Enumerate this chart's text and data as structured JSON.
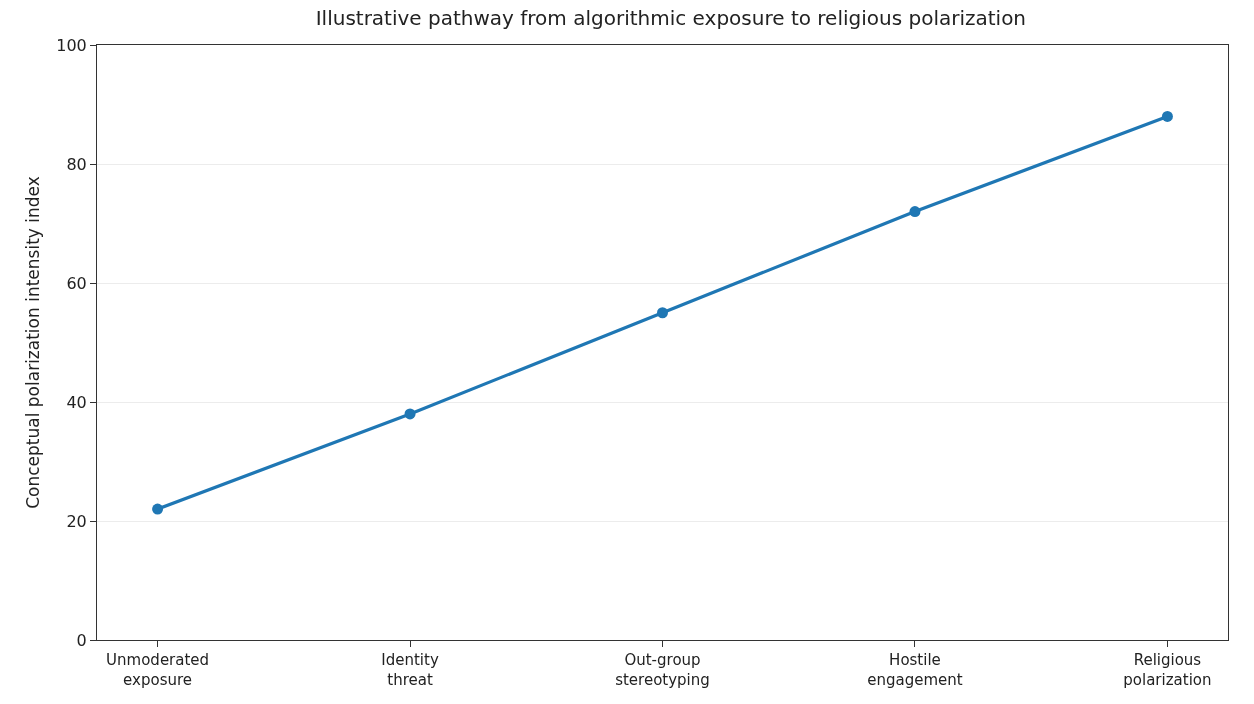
{
  "chart_data": {
    "type": "line",
    "title": "Illustrative pathway from algorithmic exposure to religious polarization",
    "ylabel": "Conceptual polarization intensity index",
    "categories": [
      "Unmoderated\nexposure",
      "Identity\nthreat",
      "Out-group\nstereotyping",
      "Hostile\nengagement",
      "Religious\npolarization"
    ],
    "series": [
      {
        "color": "#1f77b4",
        "values": [
          22,
          38,
          55,
          72,
          88
        ]
      }
    ],
    "ylim": [
      0,
      100
    ],
    "yticks": [
      0,
      20,
      40,
      60,
      80,
      100
    ],
    "grid": "y",
    "marker": "circle",
    "line_style": "solid"
  }
}
